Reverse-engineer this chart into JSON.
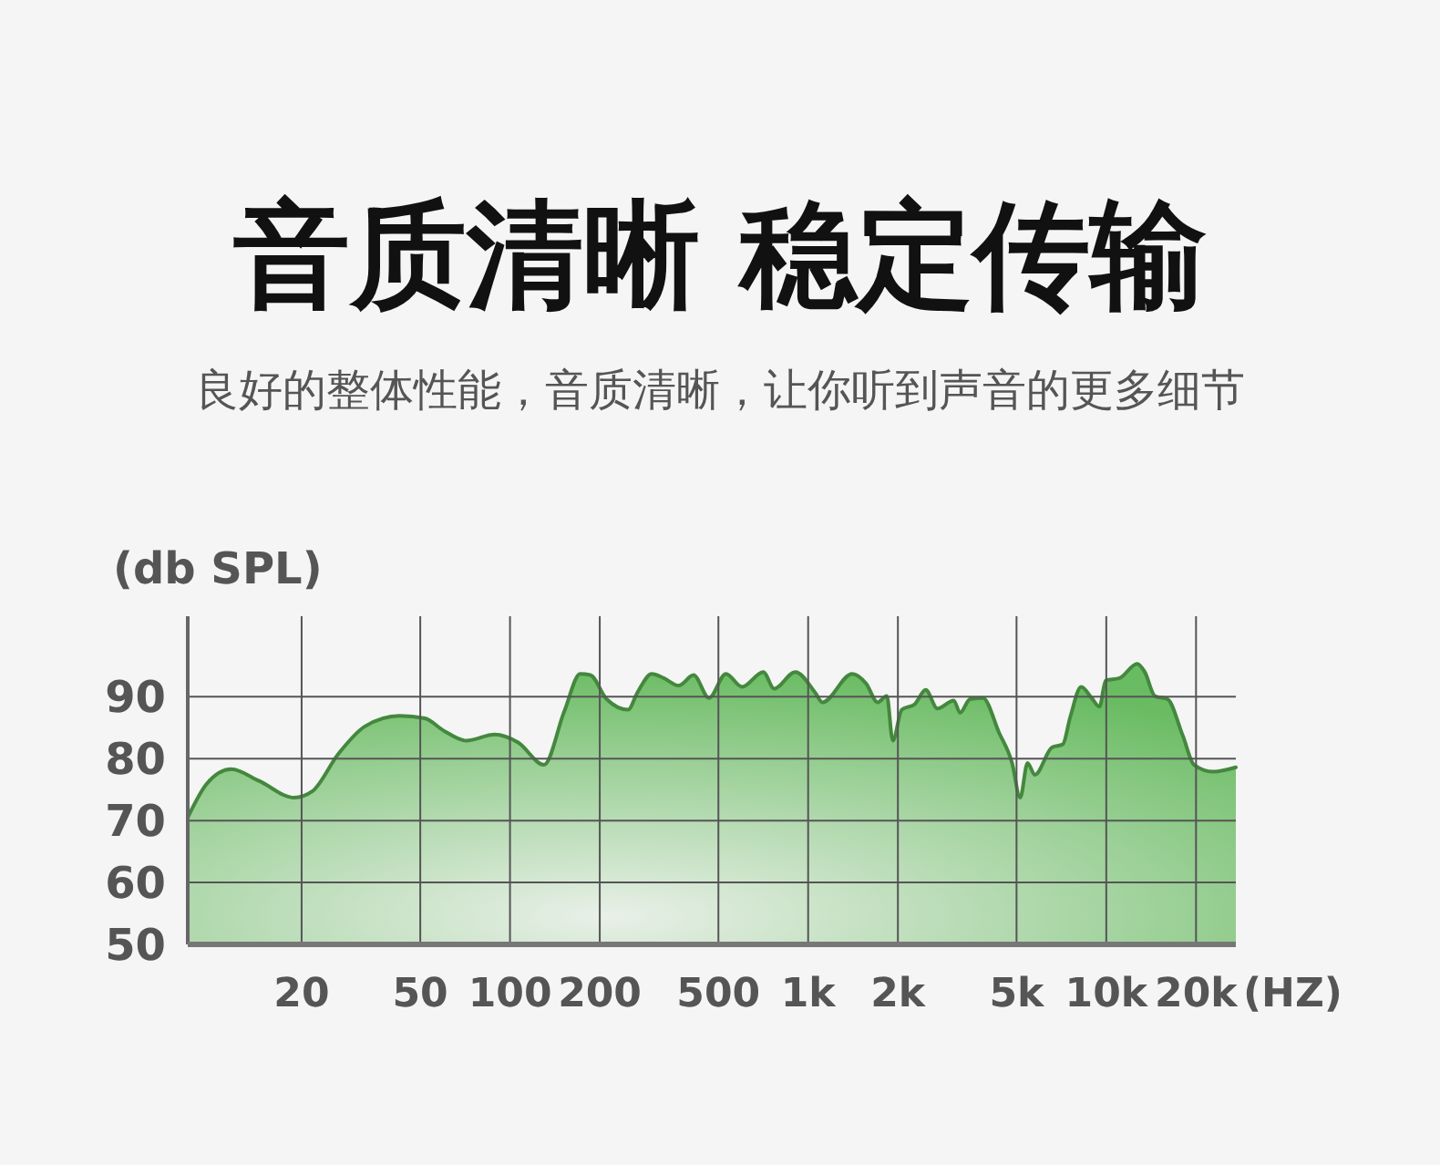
{
  "chart_data": {
    "type": "area",
    "title": "音质清晰 稳定传输",
    "subtitle": "良好的整体性能，音质清晰，让你听到声音的更多细节",
    "xlabel": "(HZ)",
    "ylabel": "(db SPL)",
    "log": "x",
    "grid": true,
    "xlim": [
      8.3,
      27200
    ],
    "xticks": [
      20,
      50,
      100,
      200,
      500,
      {
        "value": 1000,
        "label": "1k"
      },
      {
        "value": 2000,
        "label": "2k"
      },
      {
        "value": 5000,
        "label": "5k"
      },
      {
        "value": 10000,
        "label": "10k"
      },
      {
        "value": 20000,
        "label": "20k"
      }
    ],
    "ylim": [
      50,
      103
    ],
    "yticks": [
      50,
      60,
      70,
      80,
      90
    ],
    "series": [
      {
        "color": "#5ab552",
        "x": [
          8.3,
          9.6,
          11.6,
          14.4,
          18.9,
          21.7,
          26.6,
          32.6,
          42.7,
          51.8,
          60,
          71.3,
          88.9,
          106.5,
          130,
          152,
          172,
          186,
          211,
          249,
          267,
          299,
          328,
          368,
          413,
          465,
          530,
          600,
          707,
          769,
          906,
          1058,
          1116,
          1406,
          1566,
          1710,
          1836,
          1923,
          2061,
          2279,
          2479,
          2714,
          3078,
          3234,
          3487,
          3855,
          4368,
          4831,
          5143,
          5444,
          5759,
          6570,
          7148,
          7568,
          8240,
          8929,
          9490,
          9950,
          11080,
          12690,
          13460,
          14560,
          16060,
          18060,
          19700,
          22850,
          27200
        ],
        "values": [
          70.5,
          75.9,
          78.3,
          76.4,
          73.7,
          74.7,
          80.8,
          85.2,
          86.9,
          86.5,
          84.5,
          82.9,
          83.9,
          82.6,
          79.0,
          87.6,
          93.7,
          93.5,
          89.6,
          87.9,
          90.6,
          93.7,
          93.0,
          91.8,
          93.5,
          89.8,
          93.7,
          91.6,
          94.0,
          91.3,
          94.0,
          90.6,
          89.1,
          93.7,
          92.1,
          89.1,
          90.1,
          82.9,
          87.9,
          88.8,
          91.1,
          88.1,
          89.4,
          87.4,
          89.6,
          89.8,
          84.2,
          79.3,
          73.7,
          79.3,
          77.4,
          81.8,
          82.3,
          86.7,
          91.6,
          89.8,
          88.4,
          92.6,
          93.0,
          95.3,
          94.0,
          90.1,
          89.6,
          83.7,
          79.0,
          77.9,
          78.6
        ]
      }
    ]
  }
}
